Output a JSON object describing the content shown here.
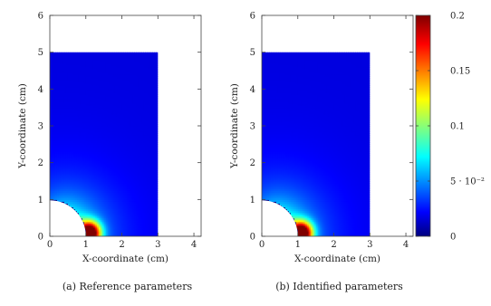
{
  "chart_data": [
    {
      "type": "heatmap",
      "caption": "(a) Reference parameters",
      "xlabel": "X-coordinate (cm)",
      "ylabel": "Y-coordinate (cm)",
      "xlim": [
        0,
        4.2
      ],
      "ylim": [
        0,
        6
      ],
      "xticks": [
        "0",
        "1",
        "2",
        "3",
        "4"
      ],
      "yticks": [
        "0",
        "1",
        "2",
        "3",
        "4",
        "5",
        "6"
      ],
      "domain": {
        "x": [
          0,
          3
        ],
        "y": [
          0,
          5
        ],
        "hole_radius": 1
      },
      "peak": {
        "x": 1.1,
        "y": 0.1,
        "value": 0.2
      }
    },
    {
      "type": "heatmap",
      "caption": "(b) Identified parameters",
      "xlabel": "X-coordinate (cm)",
      "ylabel": "Y-coordinate (cm)",
      "xlim": [
        0,
        4.2
      ],
      "ylim": [
        0,
        6
      ],
      "xticks": [
        "0",
        "1",
        "2",
        "3",
        "4"
      ],
      "yticks": [
        "0",
        "1",
        "2",
        "3",
        "4",
        "5",
        "6"
      ],
      "domain": {
        "x": [
          0,
          3
        ],
        "y": [
          0,
          5
        ],
        "hole_radius": 1
      },
      "peak": {
        "x": 1.1,
        "y": 0.1,
        "value": 0.2
      }
    }
  ],
  "colorbar": {
    "min": 0,
    "max": 0.2,
    "ticks": [
      {
        "value": 0.2,
        "label": "0.2"
      },
      {
        "value": 0.15,
        "label": "0.15"
      },
      {
        "value": 0.1,
        "label": "0.1"
      },
      {
        "value": 0.05,
        "label": "5 · 10⁻²"
      },
      {
        "value": 0,
        "label": "0"
      }
    ],
    "colormap": "jet"
  }
}
